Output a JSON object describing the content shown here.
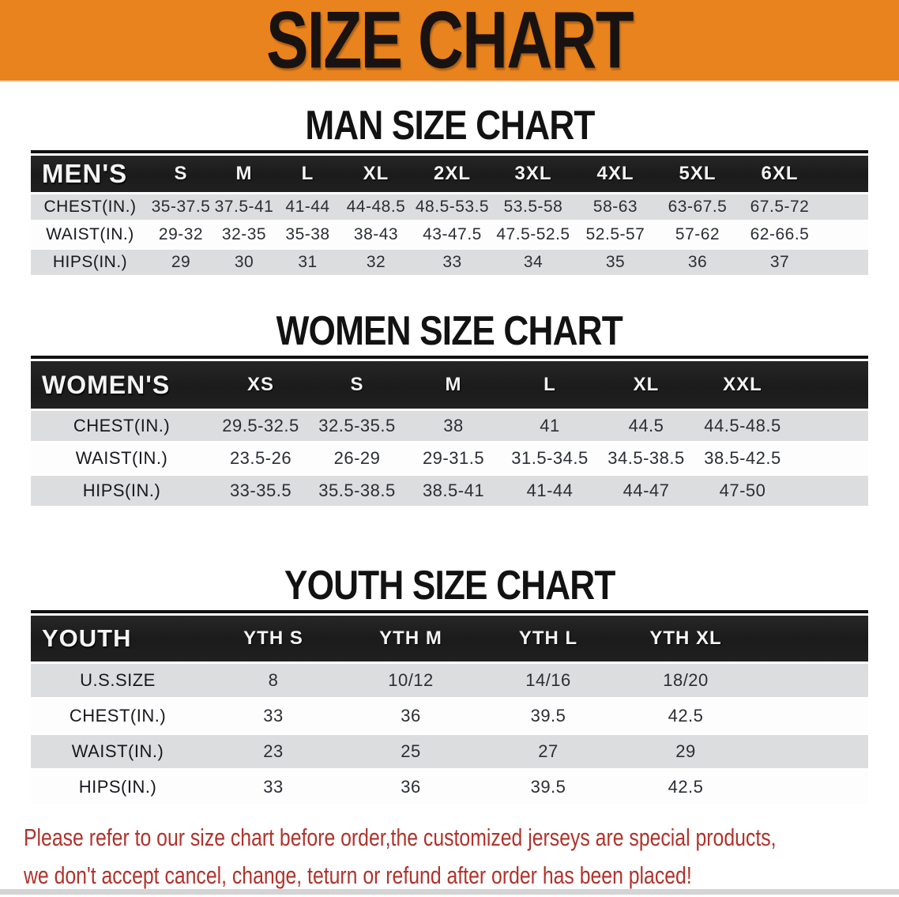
{
  "banner": {
    "title": "SIZE CHART"
  },
  "colors": {
    "banner_bg": "#E8831E",
    "table_header_bg": "#1B1B1B",
    "row_alt_gray": "#DBDDDF",
    "footer_red": "#B1322B"
  },
  "men": {
    "heading": "MAN SIZE CHART",
    "group_label": "MEN'S",
    "columns": [
      "S",
      "M",
      "L",
      "XL",
      "2XL",
      "3XL",
      "4XL",
      "5XL",
      "6XL"
    ],
    "rows": [
      {
        "label": "CHEST(IN.)",
        "values": [
          "35-37.5",
          "37.5-41",
          "41-44",
          "44-48.5",
          "48.5-53.5",
          "53.5-58",
          "58-63",
          "63-67.5",
          "67.5-72"
        ]
      },
      {
        "label": "WAIST(IN.)",
        "values": [
          "29-32",
          "32-35",
          "35-38",
          "38-43",
          "43-47.5",
          "47.5-52.5",
          "52.5-57",
          "57-62",
          "62-66.5"
        ]
      },
      {
        "label": "HIPS(IN.)",
        "values": [
          "29",
          "30",
          "31",
          "32",
          "33",
          "34",
          "35",
          "36",
          "37"
        ]
      }
    ]
  },
  "women": {
    "heading": "WOMEN SIZE CHART",
    "group_label": "WOMEN'S",
    "columns": [
      "XS",
      "S",
      "M",
      "L",
      "XL",
      "XXL"
    ],
    "rows": [
      {
        "label": "CHEST(IN.)",
        "values": [
          "29.5-32.5",
          "32.5-35.5",
          "38",
          "41",
          "44.5",
          "44.5-48.5"
        ]
      },
      {
        "label": "WAIST(IN.)",
        "values": [
          "23.5-26",
          "26-29",
          "29-31.5",
          "31.5-34.5",
          "34.5-38.5",
          "38.5-42.5"
        ]
      },
      {
        "label": "HIPS(IN.)",
        "values": [
          "33-35.5",
          "35.5-38.5",
          "38.5-41",
          "41-44",
          "44-47",
          "47-50"
        ]
      }
    ]
  },
  "youth": {
    "heading": "YOUTH SIZE CHART",
    "group_label": "YOUTH",
    "columns": [
      "YTH S",
      "YTH M",
      "YTH L",
      "YTH XL"
    ],
    "rows": [
      {
        "label": "U.S.SIZE",
        "values": [
          "8",
          "10/12",
          "14/16",
          "18/20"
        ]
      },
      {
        "label": "CHEST(IN.)",
        "values": [
          "33",
          "36",
          "39.5",
          "42.5"
        ]
      },
      {
        "label": "WAIST(IN.)",
        "values": [
          "23",
          "25",
          "27",
          "29"
        ]
      },
      {
        "label": "HIPS(IN.)",
        "values": [
          "33",
          "36",
          "39.5",
          "42.5"
        ]
      }
    ]
  },
  "footer": {
    "line1": "Please refer to our size chart before order,the customized jerseys are special products,",
    "line2": "we don't accept cancel, change, teturn or refund after order has been placed!"
  }
}
